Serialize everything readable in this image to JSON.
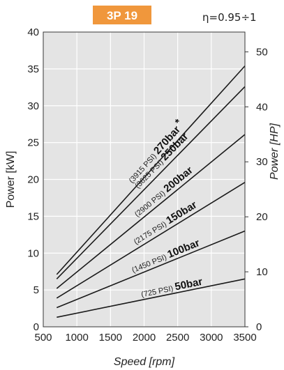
{
  "header": {
    "badge": "3P 19",
    "badge_color": "#f0973c",
    "efficiency": "η=0.95÷1"
  },
  "chart_data": {
    "type": "line",
    "xlabel": "Speed [rpm]",
    "ylabel": "Power [kW]",
    "y2label": "Power [HP]",
    "xlim": [
      500,
      3500
    ],
    "ylim": [
      0,
      40
    ],
    "y2lim": [
      0,
      53.6
    ],
    "xticks": [
      500,
      1000,
      1500,
      2000,
      2500,
      3000,
      3500
    ],
    "yticks": [
      0,
      5,
      10,
      15,
      20,
      25,
      30,
      35,
      40
    ],
    "y2ticks": [
      0,
      10,
      20,
      30,
      40,
      50
    ],
    "grid": true,
    "plot_background": "#e4e4e4",
    "series": [
      {
        "name": "270bar",
        "psi": "(3915 PSI)",
        "marker": "*",
        "x": [
          700,
          3500
        ],
        "y": [
          7.1,
          35.4
        ]
      },
      {
        "name": "250bar",
        "psi": "(3625 PSI)",
        "marker": "",
        "x": [
          700,
          3500
        ],
        "y": [
          6.5,
          32.6
        ]
      },
      {
        "name": "200bar",
        "psi": "(2900 PSI)",
        "marker": "",
        "x": [
          700,
          3500
        ],
        "y": [
          5.2,
          26.1
        ]
      },
      {
        "name": "150bar",
        "psi": "(2175 PSI)",
        "marker": "",
        "x": [
          700,
          3500
        ],
        "y": [
          3.9,
          19.6
        ]
      },
      {
        "name": "100bar",
        "psi": "(1450 PSI)",
        "marker": "",
        "x": [
          700,
          3500
        ],
        "y": [
          2.6,
          13.0
        ]
      },
      {
        "name": "50bar",
        "psi": "(725 PSI)",
        "marker": "",
        "x": [
          700,
          3500
        ],
        "y": [
          1.3,
          6.5
        ]
      }
    ]
  }
}
